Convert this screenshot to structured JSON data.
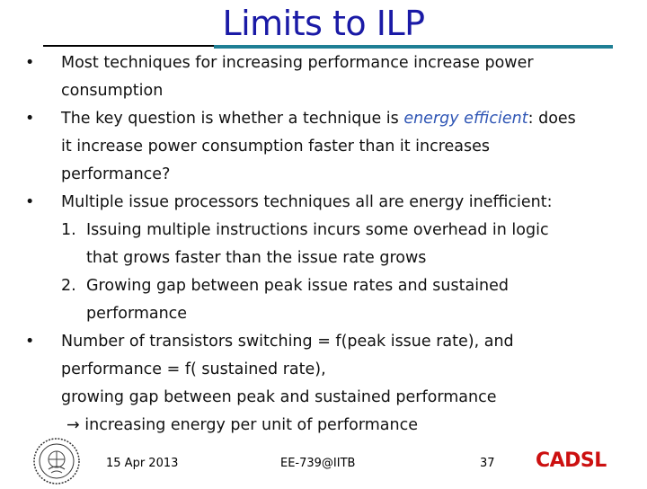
{
  "slide": {
    "title": "Limits to ILP",
    "bullet_char": "•",
    "arrow_char": "→",
    "lines": {
      "b1_l1": "Most techniques for increasing performance increase power",
      "b1_l2": "consumption",
      "b2_l1_pre": "The key question is whether a technique is ",
      "b2_l1_em": "energy efficient",
      "b2_l1_post": ": does",
      "b2_l2": "it increase power consumption faster than it increases",
      "b2_l3": "performance?",
      "b3_l1": "Multiple issue processors techniques all are energy inefficient:",
      "n1_num": "1.",
      "n1_l1": "Issuing multiple instructions incurs some overhead in logic",
      "n1_l2": "that grows faster than the issue rate grows",
      "n2_num": "2.",
      "n2_l1": "Growing gap between peak issue rates and sustained",
      "n2_l2": "performance",
      "b4_l1": "Number of transistors switching = f(peak issue rate), and",
      "b4_l2": "performance = f( sustained rate),",
      "b4_l3": "growing gap between peak and sustained performance",
      "b4_l4": "increasing energy per unit of performance"
    }
  },
  "footer": {
    "date": "15 Apr 2013",
    "course": "EE-739@IITB",
    "page": "37",
    "brand": "CADSL"
  },
  "colors": {
    "title": "#1a1aa6",
    "title_rule": "#1f7f95",
    "emphasis": "#2f56b5",
    "brand": "#cc1010"
  }
}
